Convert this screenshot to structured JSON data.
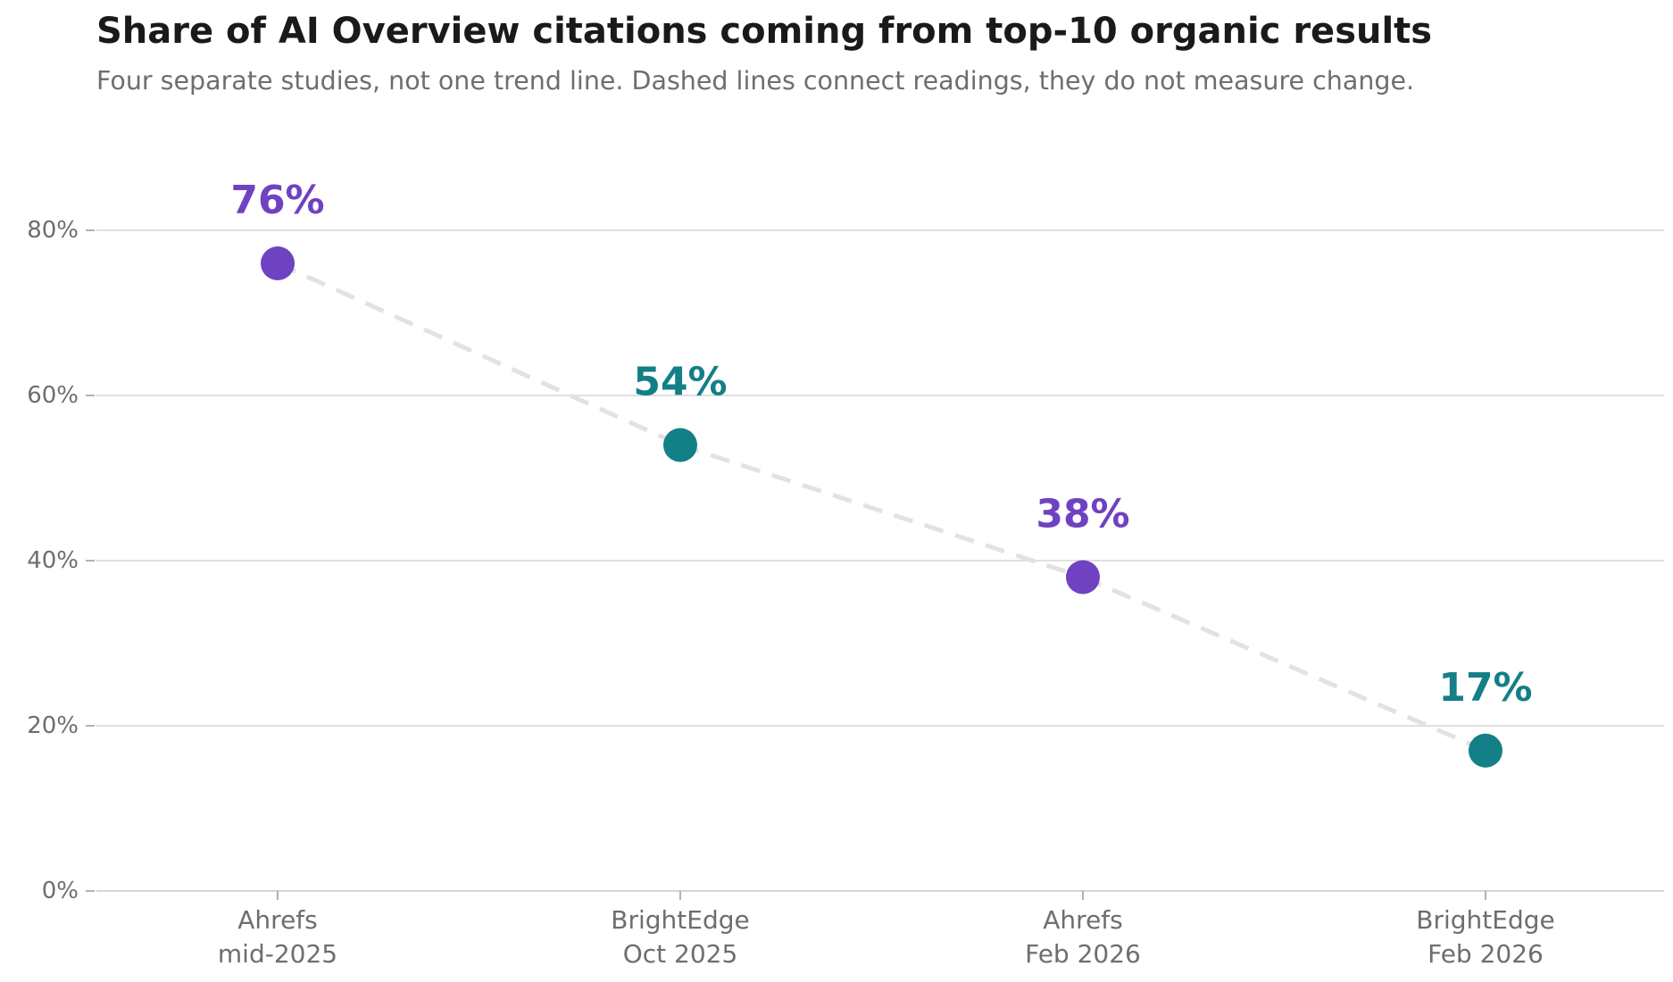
{
  "chart_data": {
    "type": "scatter",
    "title": "Share of AI Overview citations coming from top-10 organic results",
    "subtitle": "Four separate studies, not one trend line. Dashed lines connect readings, they do not measure change.",
    "xlabel": "",
    "ylabel": "",
    "categories": [
      [
        "Ahrefs",
        "mid-2025"
      ],
      [
        "BrightEdge",
        "Oct 2025"
      ],
      [
        "Ahrefs",
        "Feb 2026"
      ],
      [
        "BrightEdge",
        "Feb 2026"
      ]
    ],
    "values": [
      76,
      54,
      38,
      17
    ],
    "point_labels": [
      "76%",
      "54%",
      "38%",
      "17%"
    ],
    "point_colors": [
      "#6f42c1",
      "#137f86",
      "#6f42c1",
      "#137f86"
    ],
    "connector": {
      "style": "dashed",
      "color": "#e2e2e2"
    },
    "ylim": [
      0,
      92
    ],
    "yticks": [
      0,
      20,
      40,
      60,
      80
    ],
    "ytick_labels": [
      "0%",
      "20%",
      "40%",
      "60%",
      "80%"
    ],
    "grid": true
  }
}
